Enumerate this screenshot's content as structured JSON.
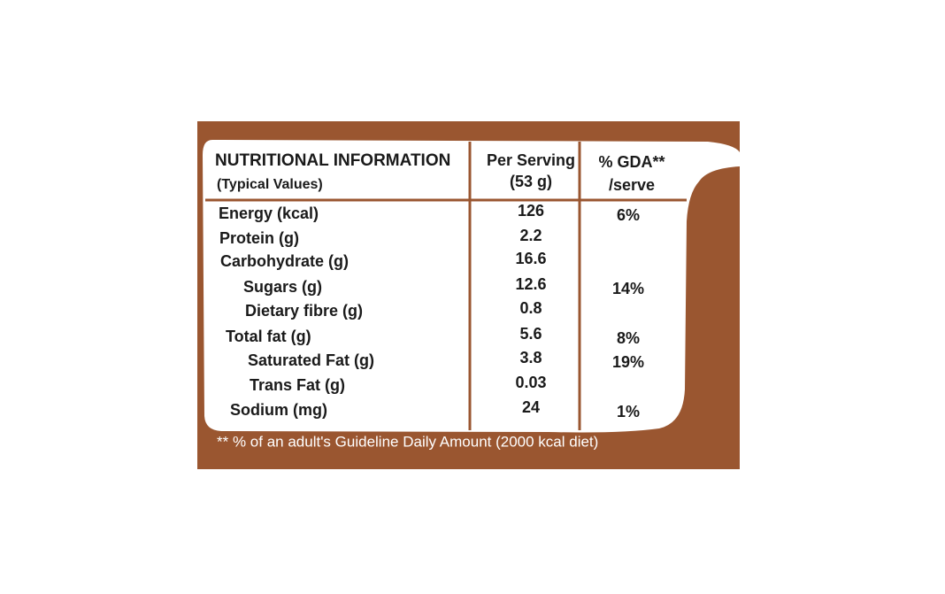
{
  "header": {
    "title": "NUTRITIONAL INFORMATION",
    "subtitle": "(Typical Values)",
    "columns": [
      {
        "line1": "Per Serving",
        "line2": "(53 g)"
      },
      {
        "line1": "% GDA**",
        "line2": "/serve"
      }
    ]
  },
  "table": {
    "rows": [
      {
        "name": "Energy (kcal)",
        "per_serving": 126,
        "gda": "6%"
      },
      {
        "name": "Protein (g)",
        "per_serving": 2.2,
        "gda": null
      },
      {
        "name": "Carbohydrate (g)",
        "per_serving": 16.6,
        "gda": null
      },
      {
        "name": "Sugars (g)",
        "per_serving": 12.6,
        "gda": "14%"
      },
      {
        "name": "Dietary fibre (g)",
        "per_serving": 0.8,
        "gda": null
      },
      {
        "name": "Total fat (g)",
        "per_serving": 5.6,
        "gda": "8%"
      },
      {
        "name": "Saturated Fat (g)",
        "per_serving": 3.8,
        "gda": "19%"
      },
      {
        "name": "Trans Fat (g)",
        "per_serving": 0.03,
        "gda": null
      },
      {
        "name": "Sodium (mg)",
        "per_serving": 24,
        "gda": "1%"
      }
    ]
  },
  "footnote": "** % of an adult's Guideline Daily Amount (2000 kcal diet)"
}
